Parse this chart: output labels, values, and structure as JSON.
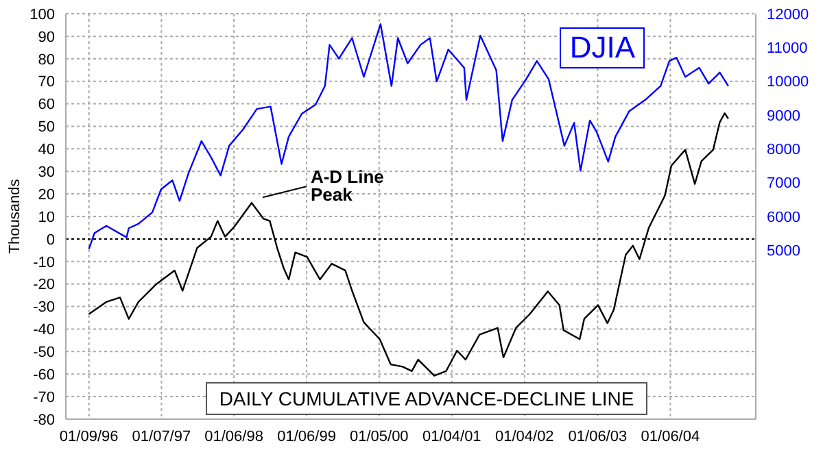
{
  "chart_data": {
    "type": "line",
    "title": "DAILY CUMULATIVE ADVANCE-DECLINE LINE",
    "ylabel": "Thousands",
    "xlim": [
      "1995-09-15",
      "2005-03-10"
    ],
    "xticks": [
      {
        "value": "1996-01-09",
        "label": "01/09/96"
      },
      {
        "value": "1997-01-07",
        "label": "01/07/97"
      },
      {
        "value": "1998-01-06",
        "label": "01/06/98"
      },
      {
        "value": "1999-01-06",
        "label": "01/06/99"
      },
      {
        "value": "2000-01-05",
        "label": "01/05/00"
      },
      {
        "value": "2001-01-04",
        "label": "01/04/01"
      },
      {
        "value": "2002-01-04",
        "label": "01/04/02"
      },
      {
        "value": "2003-01-06",
        "label": "01/06/03"
      },
      {
        "value": "2004-01-06",
        "label": "01/06/04"
      }
    ],
    "ylim": [
      -80,
      100
    ],
    "yticks": [
      -80,
      -70,
      -60,
      -50,
      -40,
      -30,
      -20,
      -10,
      0,
      10,
      20,
      30,
      40,
      50,
      60,
      70,
      80,
      90,
      100
    ],
    "y2lim": [
      0,
      12000
    ],
    "y2ticks": [
      5000,
      6000,
      7000,
      8000,
      9000,
      10000,
      11000,
      12000
    ],
    "grid": true,
    "legend": "top right",
    "marker": "none",
    "line_style": "solid",
    "ref_lines": [
      {
        "axis": "y",
        "value": 0,
        "color": "#000000",
        "line_style": "dotted"
      }
    ],
    "annotations": [
      {
        "text": "A-D Line Peak",
        "x": "1998-04-05",
        "y": 16
      }
    ],
    "series": [
      {
        "color": "#000000",
        "x": [
          "1996-01-08",
          "1996-04-05",
          "1996-06-13",
          "1996-07-27",
          "1996-09-13",
          "1996-12-13",
          "1997-03-14",
          "1997-04-23",
          "1997-07-05",
          "1997-09-13",
          "1997-10-16",
          "1997-11-22",
          "1998-01-04",
          "1998-04-05",
          "1998-06-03",
          "1998-07-05",
          "1998-08-11",
          "1998-09-13",
          "1998-10-08",
          "1998-11-10",
          "1999-01-08",
          "1999-03-14",
          "1999-05-12",
          "1999-07-19",
          "1999-08-22",
          "1999-10-20",
          "2000-01-08",
          "2000-03-03",
          "2000-05-01",
          "2000-06-17",
          "2000-07-19",
          "2000-10-08",
          "2000-12-06",
          "2001-01-30",
          "2001-03-14",
          "2001-05-23",
          "2001-08-22",
          "2001-09-20",
          "2001-11-22",
          "2002-01-30",
          "2002-05-01",
          "2002-06-28",
          "2002-07-19",
          "2002-10-08",
          "2002-10-31",
          "2003-01-08",
          "2003-02-24",
          "2003-03-28",
          "2003-05-27",
          "2003-07-02",
          "2003-08-04",
          "2003-09-20",
          "2003-12-10",
          "2004-01-11",
          "2004-03-21",
          "2004-05-08",
          "2004-06-10",
          "2004-08-08",
          "2004-09-10",
          "2004-10-05",
          "2004-10-23"
        ],
        "values": [
          -33.4,
          -28,
          -26,
          -35.5,
          -28,
          -20,
          -14,
          -23,
          -4,
          1,
          8,
          1,
          5,
          16,
          9,
          8,
          -4,
          -13,
          -18,
          -6,
          -8,
          -18,
          -11,
          -14,
          -23,
          -37,
          -44.5,
          -55.7,
          -56.7,
          -58.7,
          -53.6,
          -60.7,
          -58.7,
          -49.6,
          -53.6,
          -42.5,
          -39.5,
          -52.6,
          -39.5,
          -33.4,
          -23.3,
          -29.4,
          -40.5,
          -44.5,
          -35.4,
          -29.4,
          -37.4,
          -31.4,
          -7,
          -3,
          -9,
          5,
          19.3,
          32.5,
          39.6,
          24.4,
          34.5,
          39.6,
          51.8,
          55.8,
          53.4
        ]
      },
      {
        "name": "DJIA",
        "color": "#0000ff",
        "axis": "y2",
        "x": [
          "1996-01-09",
          "1996-02-06",
          "1996-04-05",
          "1996-07-16",
          "1996-07-27",
          "1996-09-13",
          "1996-11-22",
          "1997-01-05",
          "1997-03-03",
          "1997-04-08",
          "1997-05-23",
          "1997-07-27",
          "1997-09-13",
          "1997-10-31",
          "1997-12-13",
          "1998-02-20",
          "1998-05-01",
          "1998-07-09",
          "1998-09-02",
          "1998-10-08",
          "1998-12-13",
          "1999-02-20",
          "1999-04-08",
          "1999-05-01",
          "1999-06-17",
          "1999-08-22",
          "1999-10-20",
          "1999-12-17",
          "2000-01-12",
          "2000-03-07",
          "2000-04-08",
          "2000-05-27",
          "2000-07-31",
          "2000-09-16",
          "2000-10-20",
          "2000-12-17",
          "2001-03-07",
          "2001-03-18",
          "2001-05-27",
          "2001-08-15",
          "2001-09-16",
          "2001-11-03",
          "2002-01-12",
          "2002-03-07",
          "2002-05-05",
          "2002-07-23",
          "2002-09-10",
          "2002-10-12",
          "2002-11-28",
          "2003-01-01",
          "2003-02-28",
          "2003-04-05",
          "2003-06-13",
          "2003-09-02",
          "2003-11-18",
          "2004-01-01",
          "2004-02-06",
          "2004-03-21",
          "2004-05-30",
          "2004-07-16",
          "2004-09-10",
          "2004-10-23"
        ],
        "values": [
          5040,
          5510,
          5720,
          5380,
          5650,
          5780,
          6120,
          6800,
          7070,
          6460,
          7280,
          8230,
          7750,
          7210,
          8090,
          8570,
          9180,
          9250,
          7550,
          8360,
          9040,
          9310,
          9860,
          11080,
          10670,
          11280,
          10130,
          11210,
          11690,
          9860,
          11280,
          10530,
          11080,
          11280,
          9990,
          10940,
          10400,
          9450,
          11350,
          10330,
          8230,
          9450,
          10060,
          10600,
          10060,
          8090,
          8770,
          7350,
          8840,
          8500,
          7620,
          8360,
          9110,
          9450,
          9860,
          10600,
          10700,
          10130,
          10400,
          9930,
          10260,
          9860
        ]
      }
    ]
  }
}
